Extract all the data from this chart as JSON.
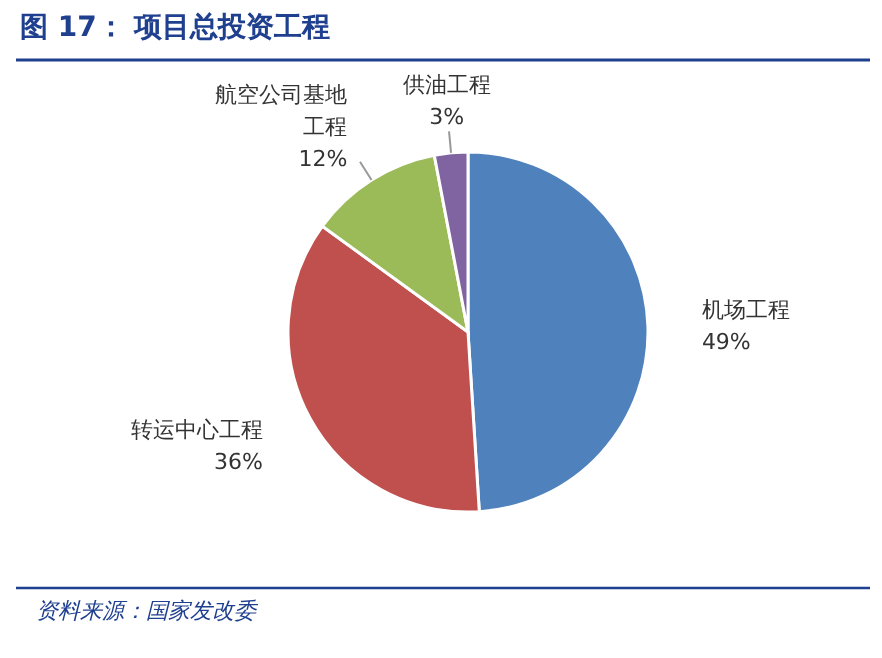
{
  "chart_data": {
    "type": "pie",
    "title": "图 17： 项目总投资工程",
    "categories": [
      "机场工程",
      "转运中心工程",
      "航空公司基地工程",
      "供油工程"
    ],
    "values": [
      49,
      36,
      12,
      3
    ],
    "colors": [
      "#4f81bd",
      "#c0504d",
      "#9bbb59",
      "#8064a2"
    ],
    "value_labels": [
      "49%",
      "36%",
      "12%",
      "3%"
    ],
    "annotations": [
      "资料来源：国家发改委"
    ]
  }
}
